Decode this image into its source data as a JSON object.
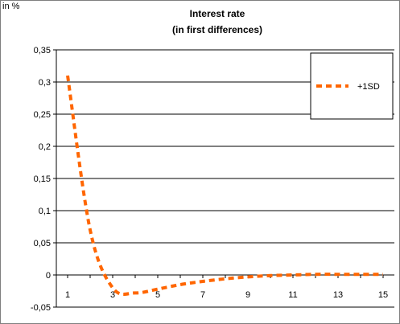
{
  "chart_data": {
    "type": "line",
    "title": "Interest rate",
    "subtitle": "(in first differences)",
    "ylabel": "in %",
    "xlabel": "",
    "x": [
      1,
      2,
      3,
      4,
      5,
      6,
      7,
      8,
      9,
      10,
      11,
      12,
      13,
      14,
      15
    ],
    "x_tick_labels": [
      "1",
      "3",
      "5",
      "7",
      "9",
      "11",
      "13",
      "15"
    ],
    "y_tick_labels": [
      "0,35",
      "0,3",
      "0,25",
      "0,2",
      "0,15",
      "0,1",
      "0,05",
      "0",
      "-0,05"
    ],
    "ylim": [
      -0.05,
      0.35
    ],
    "grid": true,
    "legend_position": "top-right",
    "series": [
      {
        "name": "+1SD",
        "color": "#ff6600",
        "style": "dashed",
        "values": [
          0.31,
          0.07,
          -0.02,
          -0.028,
          -0.022,
          -0.015,
          -0.01,
          -0.006,
          -0.003,
          -0.001,
          0.0,
          0.001,
          0.001,
          0.001,
          0.001
        ]
      }
    ]
  }
}
